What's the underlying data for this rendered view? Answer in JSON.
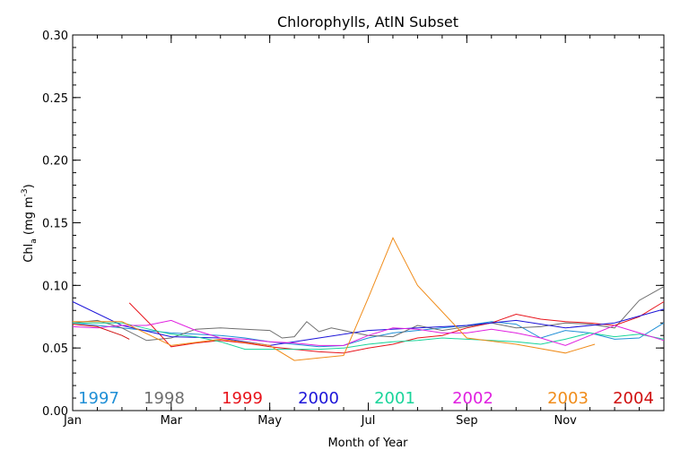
{
  "chart_data": {
    "type": "line",
    "title": "Chlorophylls, AtlN Subset",
    "xlabel": "Month of Year",
    "ylabel": "Chl_a (mg m^-3)",
    "ylabel_parts": {
      "main": "Chl",
      "sub": "a",
      "unit_open": " (mg m",
      "sup": "-3",
      "unit_close": ")"
    },
    "xlim": [
      0,
      12
    ],
    "ylim": [
      0,
      0.3
    ],
    "x_ticks": [
      {
        "value": 0,
        "label": "Jan"
      },
      {
        "value": 2,
        "label": "Mar"
      },
      {
        "value": 4,
        "label": "May"
      },
      {
        "value": 6,
        "label": "Jul"
      },
      {
        "value": 8,
        "label": "Sep"
      },
      {
        "value": 10,
        "label": "Nov"
      }
    ],
    "y_ticks": [
      {
        "value": 0.0,
        "label": "0.00"
      },
      {
        "value": 0.05,
        "label": "0.05"
      },
      {
        "value": 0.1,
        "label": "0.10"
      },
      {
        "value": 0.15,
        "label": "0.15"
      },
      {
        "value": 0.2,
        "label": "0.20"
      },
      {
        "value": 0.25,
        "label": "0.25"
      },
      {
        "value": 0.3,
        "label": "0.30"
      }
    ],
    "grid": false,
    "legend_placement": "bottom-inside",
    "series": [
      {
        "name": "1997",
        "color": "#1f8fd6",
        "x": [
          0.0,
          0.5,
          1.0,
          1.5,
          2.0,
          2.5,
          3.0,
          3.5,
          4.0,
          4.5,
          5.0,
          5.5,
          6.0,
          6.5,
          7.0,
          7.5,
          8.0,
          8.5,
          9.0,
          9.5,
          10.0,
          10.5,
          11.0,
          11.5,
          12.0
        ],
        "y": [
          0.07,
          0.068,
          0.066,
          0.064,
          0.062,
          0.061,
          0.06,
          0.058,
          0.055,
          0.053,
          0.051,
          0.052,
          0.058,
          0.062,
          0.064,
          0.066,
          0.068,
          0.071,
          0.069,
          0.058,
          0.064,
          0.062,
          0.057,
          0.058,
          0.07
        ]
      },
      {
        "name": "1998",
        "color": "#6e6e6e",
        "x": [
          0.0,
          0.5,
          1.0,
          1.5,
          2.0,
          2.5,
          3.0,
          3.5,
          4.0,
          4.25,
          4.5,
          4.75,
          5.0,
          5.25,
          5.5,
          6.0,
          6.5,
          7.0,
          7.5,
          8.0,
          8.5,
          9.0,
          9.5,
          10.0,
          10.5,
          11.0,
          11.5,
          12.0
        ],
        "y": [
          0.07,
          0.072,
          0.066,
          0.056,
          0.058,
          0.065,
          0.066,
          0.065,
          0.064,
          0.058,
          0.059,
          0.071,
          0.063,
          0.066,
          0.064,
          0.06,
          0.059,
          0.068,
          0.064,
          0.067,
          0.07,
          0.066,
          0.067,
          0.07,
          0.069,
          0.066,
          0.088,
          0.099
        ]
      },
      {
        "name": "1999",
        "color": "#e8141c",
        "x": [
          1.15,
          1.6,
          2.0,
          2.5,
          3.0,
          3.5,
          4.0,
          4.5,
          5.0,
          5.5,
          6.0,
          6.5,
          7.0,
          7.5,
          8.0,
          8.5,
          9.0,
          9.5,
          10.0,
          10.5,
          11.0,
          11.5,
          12.0
        ],
        "y": [
          0.086,
          0.068,
          0.051,
          0.054,
          0.056,
          0.054,
          0.051,
          0.049,
          0.047,
          0.046,
          0.05,
          0.053,
          0.058,
          0.06,
          0.066,
          0.07,
          0.077,
          0.073,
          0.071,
          0.07,
          0.068,
          0.075,
          0.087
        ]
      },
      {
        "name": "2000",
        "color": "#1c14d8",
        "x": [
          0.0,
          1.0,
          2.0,
          3.0,
          4.0,
          5.0,
          6.0,
          7.0,
          8.0,
          9.0,
          10.0,
          11.0,
          12.0
        ],
        "y": [
          0.087,
          0.068,
          0.059,
          0.058,
          0.052,
          0.058,
          0.064,
          0.066,
          0.068,
          0.072,
          0.066,
          0.07,
          0.081
        ]
      },
      {
        "name": "2001",
        "color": "#19d49a",
        "x": [
          0.0,
          1.0,
          2.0,
          2.5,
          3.0,
          3.5,
          4.0,
          5.0,
          5.5,
          6.0,
          6.5,
          7.0,
          7.5,
          8.0,
          8.5,
          9.0,
          9.5,
          10.0,
          10.5,
          11.0,
          11.5,
          12.0
        ],
        "y": [
          0.07,
          0.07,
          0.061,
          0.059,
          0.055,
          0.049,
          0.049,
          0.049,
          0.05,
          0.053,
          0.055,
          0.056,
          0.058,
          0.057,
          0.056,
          0.055,
          0.053,
          0.057,
          0.062,
          0.059,
          0.061,
          0.057
        ]
      },
      {
        "name": "2002",
        "color": "#e020e0",
        "x": [
          0.0,
          0.5,
          1.0,
          1.5,
          2.0,
          2.5,
          3.0,
          3.5,
          4.0,
          4.5,
          5.0,
          5.5,
          6.0,
          6.5,
          7.0,
          7.5,
          8.0,
          8.5,
          9.0,
          9.5,
          10.0,
          10.5,
          11.0,
          11.5,
          12.0
        ],
        "y": [
          0.067,
          0.066,
          0.068,
          0.068,
          0.072,
          0.064,
          0.058,
          0.057,
          0.055,
          0.054,
          0.052,
          0.052,
          0.06,
          0.066,
          0.065,
          0.062,
          0.062,
          0.065,
          0.062,
          0.058,
          0.052,
          0.06,
          0.068,
          0.062,
          0.056
        ]
      },
      {
        "name": "2003",
        "color": "#f08c1a",
        "x": [
          0.0,
          1.0,
          2.0,
          3.0,
          4.0,
          4.5,
          5.0,
          5.5,
          6.0,
          6.5,
          7.0,
          8.0,
          9.0,
          10.0,
          10.6
        ],
        "y": [
          0.071,
          0.071,
          0.052,
          0.057,
          0.052,
          0.04,
          0.042,
          0.044,
          0.09,
          0.138,
          0.1,
          0.058,
          0.053,
          0.046,
          0.053
        ]
      },
      {
        "name": "2004",
        "color": "#d01010",
        "x": [
          0.0,
          0.5,
          1.0,
          1.15
        ],
        "y": [
          0.069,
          0.067,
          0.06,
          0.057
        ]
      }
    ]
  }
}
